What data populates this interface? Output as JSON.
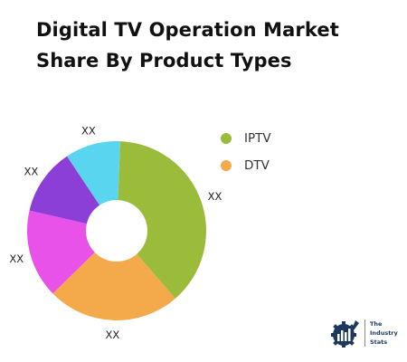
{
  "title": "Digital TV Operation Market Share By Product Types",
  "chart_data": {
    "type": "pie",
    "variant": "donut",
    "slices": [
      {
        "label": "XX",
        "value": 38,
        "color": "#9bbb3b"
      },
      {
        "label": "XX",
        "value": 24,
        "color": "#f4a94a"
      },
      {
        "label": "XX",
        "value": 16,
        "color": "#e952e8"
      },
      {
        "label": "XX",
        "value": 12,
        "color": "#8c3fd6"
      },
      {
        "label": "XX",
        "value": 10,
        "color": "#5ad5f0"
      }
    ],
    "legend": {
      "position": "right",
      "items": [
        {
          "label": "IPTV",
          "color": "#9bbb3b"
        },
        {
          "label": "DTV",
          "color": "#f4a94a"
        }
      ]
    }
  },
  "logo": {
    "line1": "The",
    "line2": "Industry",
    "line3": "Stats"
  }
}
